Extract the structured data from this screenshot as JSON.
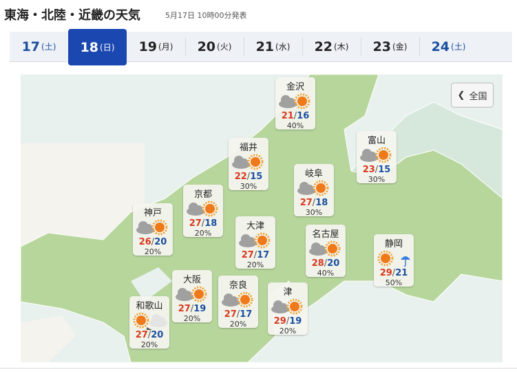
{
  "header": {
    "title": "東海・北陸・近畿の天気",
    "issued": "5月17日 10時00分発表"
  },
  "tabs": [
    {
      "day": "17",
      "weekday": "(土)",
      "style": "blue"
    },
    {
      "day": "18",
      "weekday": "(日)",
      "style": "active"
    },
    {
      "day": "19",
      "weekday": "(月)",
      "style": ""
    },
    {
      "day": "20",
      "weekday": "(火)",
      "style": ""
    },
    {
      "day": "21",
      "weekday": "(水)",
      "style": ""
    },
    {
      "day": "22",
      "weekday": "(木)",
      "style": ""
    },
    {
      "day": "23",
      "weekday": "(金)",
      "style": ""
    },
    {
      "day": "24",
      "weekday": "(土)",
      "style": "blue"
    }
  ],
  "back_button": {
    "label": "全国",
    "icon": "chevron-left-icon"
  },
  "colors": {
    "accent": "#1b48b0",
    "high": "#d9381e",
    "low": "#1a4fa0",
    "land": "#b7d69c"
  },
  "cities": [
    {
      "name": "金沢",
      "icon": "cloud-then-sun",
      "high": "21",
      "low": "16",
      "precip": "40%"
    },
    {
      "name": "福井",
      "icon": "cloud-then-sun",
      "high": "22",
      "low": "15",
      "precip": "30%"
    },
    {
      "name": "富山",
      "icon": "cloud-then-sun",
      "high": "23",
      "low": "15",
      "precip": "30%"
    },
    {
      "name": "岐阜",
      "icon": "cloud-then-sun",
      "high": "27",
      "low": "18",
      "precip": "30%"
    },
    {
      "name": "京都",
      "icon": "cloud-then-sun",
      "high": "27",
      "low": "18",
      "precip": "20%"
    },
    {
      "name": "神戸",
      "icon": "cloud-then-sun",
      "high": "26",
      "low": "20",
      "precip": "20%"
    },
    {
      "name": "大津",
      "icon": "cloud-then-sun",
      "high": "27",
      "low": "17",
      "precip": "20%"
    },
    {
      "name": "名古屋",
      "icon": "cloud-then-sun",
      "high": "28",
      "low": "20",
      "precip": "40%"
    },
    {
      "name": "静岡",
      "icon": "sun-then-rain",
      "high": "29",
      "low": "21",
      "precip": "50%"
    },
    {
      "name": "大阪",
      "icon": "cloud-then-sun",
      "high": "27",
      "low": "19",
      "precip": "20%"
    },
    {
      "name": "奈良",
      "icon": "cloud-then-sun",
      "high": "27",
      "low": "17",
      "precip": "20%"
    },
    {
      "name": "津",
      "icon": "cloud-then-sun",
      "high": "29",
      "low": "19",
      "precip": "20%"
    },
    {
      "name": "和歌山",
      "icon": "sun-then-cloud",
      "high": "27",
      "low": "20",
      "precip": "20%"
    }
  ]
}
